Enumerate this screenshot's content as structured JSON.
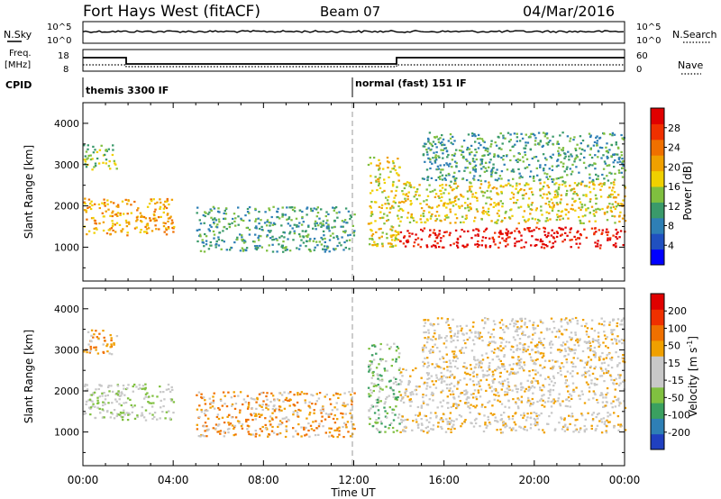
{
  "header": {
    "station": "Fort Hays West (fitACF)",
    "beam": "Beam 07",
    "date": "04/Mar/2016"
  },
  "panels": {
    "nsky_label": "N.Sky",
    "nsky_ticks": [
      "10^5",
      "10^0"
    ],
    "nsearch_label": "N.Search",
    "nsearch_ticks": [
      "10^5",
      "10^0"
    ],
    "freq_label": "Freq.",
    "freq_unit": "[MHz]",
    "freq_ticks": [
      "18",
      "8"
    ],
    "nave_label": "Nave",
    "nave_ticks": [
      "60",
      "0"
    ],
    "cpid_label": "CPID",
    "cpid_modes": [
      "themis 3300 IF",
      "normal (fast) 151 IF"
    ]
  },
  "chart_data": [
    {
      "type": "heatmap",
      "name": "power",
      "xlabel": "Time UT",
      "ylabel": "Slant Range [km]",
      "x_ticks": [
        "00:00",
        "04:00",
        "08:00",
        "12:00",
        "16:00",
        "20:00",
        "00:00"
      ],
      "x_range_hours": [
        0,
        24
      ],
      "y_ticks": [
        1000,
        2000,
        3000,
        4000
      ],
      "y_range_km": [
        180,
        4500
      ],
      "colorbar_label": "Power [dB]",
      "colorbar_ticks": [
        "28",
        "24",
        "20",
        "16",
        "12",
        "8",
        "4"
      ],
      "colorbar_colors": [
        "#0000ff",
        "#2050c0",
        "#2e7fb5",
        "#3a9a6a",
        "#7fbf3f",
        "#f0d000",
        "#f0a000",
        "#f07000",
        "#f03000",
        "#e00000"
      ],
      "echo_regions": [
        {
          "t_start": 0.0,
          "t_end": 4.0,
          "r_low": 1300,
          "r_high": 2200,
          "level": 6
        },
        {
          "t_start": 0.0,
          "t_end": 1.5,
          "r_low": 2900,
          "r_high": 3500,
          "level": 4
        },
        {
          "t_start": 5.0,
          "t_end": 12.0,
          "r_low": 900,
          "r_high": 2000,
          "level": 3
        },
        {
          "t_start": 12.6,
          "t_end": 14.0,
          "r_low": 1000,
          "r_high": 3200,
          "level": 5
        },
        {
          "t_start": 14.0,
          "t_end": 24.0,
          "r_low": 1000,
          "r_high": 1500,
          "level": 9
        },
        {
          "t_start": 14.0,
          "t_end": 24.0,
          "r_low": 1600,
          "r_high": 2600,
          "level": 5
        },
        {
          "t_start": 15.0,
          "t_end": 24.0,
          "r_low": 2600,
          "r_high": 3800,
          "level": 3
        }
      ]
    },
    {
      "type": "heatmap",
      "name": "velocity",
      "xlabel": "Time UT",
      "ylabel": "Slant Range [km]",
      "x_ticks": [
        "00:00",
        "04:00",
        "08:00",
        "12:00",
        "16:00",
        "20:00",
        "00:00"
      ],
      "x_range_hours": [
        0,
        24
      ],
      "y_ticks": [
        1000,
        2000,
        3000,
        4000
      ],
      "y_range_km": [
        180,
        4500
      ],
      "colorbar_label": "Velocity [m s",
      "colorbar_label_sup": "-1",
      "colorbar_label_end": "]",
      "colorbar_ticks": [
        "200",
        "100",
        "50",
        "15",
        "-15",
        "-50",
        "-100",
        "-200"
      ],
      "colorbar_colors": [
        "#2040c0",
        "#2e7fb5",
        "#3aa060",
        "#80c040",
        "#c8c8c8",
        "#c8c8c8",
        "#f0a000",
        "#f07000",
        "#f03000",
        "#e00000"
      ],
      "echo_regions": [
        {
          "t_start": 0.0,
          "t_end": 4.0,
          "r_low": 1300,
          "r_high": 2200,
          "level": 4
        },
        {
          "t_start": 0.0,
          "t_end": 1.5,
          "r_low": 2900,
          "r_high": 3500,
          "level": 6
        },
        {
          "t_start": 5.0,
          "t_end": 12.0,
          "r_low": 900,
          "r_high": 2000,
          "level": 6
        },
        {
          "t_start": 12.6,
          "t_end": 14.0,
          "r_low": 1000,
          "r_high": 3200,
          "level": 3
        },
        {
          "t_start": 14.0,
          "t_end": 24.0,
          "r_low": 1000,
          "r_high": 1500,
          "level": 5
        },
        {
          "t_start": 14.0,
          "t_end": 24.0,
          "r_low": 1600,
          "r_high": 2600,
          "level": 5
        },
        {
          "t_start": 15.0,
          "t_end": 24.0,
          "r_low": 2600,
          "r_high": 3800,
          "level": 5
        }
      ]
    }
  ]
}
